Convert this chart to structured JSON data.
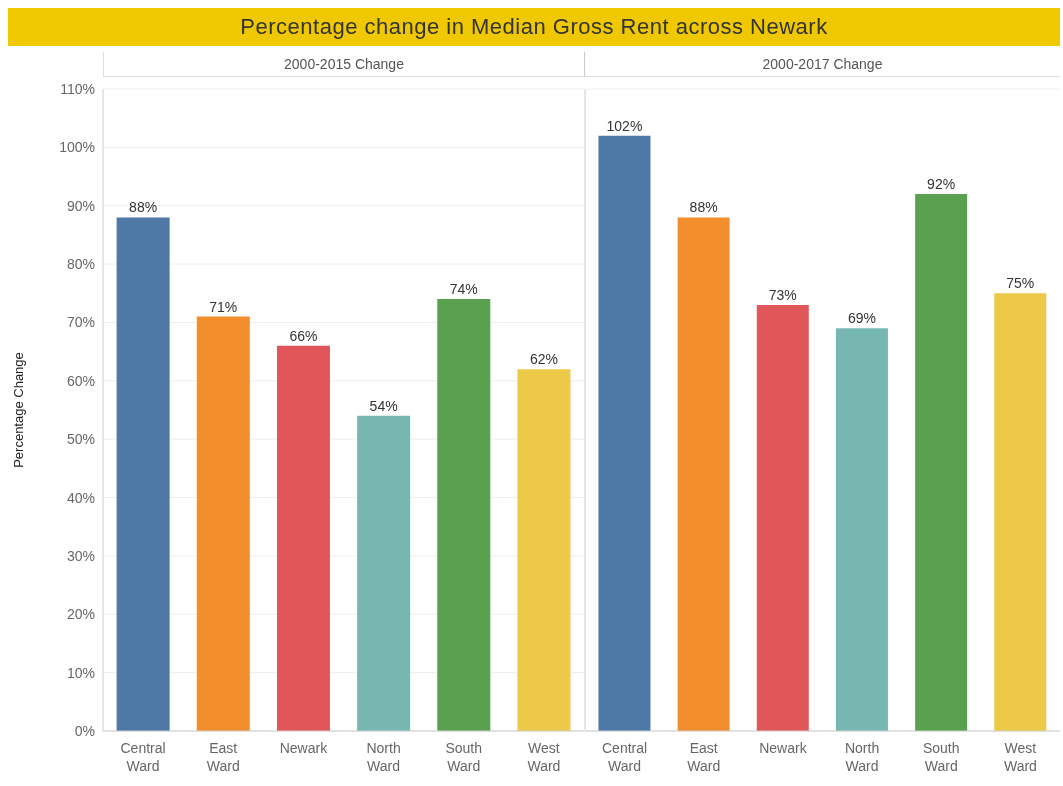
{
  "chart_data": [
    {
      "type": "bar",
      "title": "Percentage change in Median Gross Rent across Newark",
      "subtitle": "2000-2015 Change",
      "ylabel": "Percentage Change",
      "categories": [
        "Central Ward",
        "East Ward",
        "Newark",
        "North Ward",
        "South Ward",
        "West Ward"
      ],
      "values": [
        88,
        71,
        66,
        54,
        74,
        62
      ],
      "value_labels": [
        "88%",
        "71%",
        "66%",
        "54%",
        "74%",
        "62%"
      ],
      "colors": [
        "#4e79a7",
        "#f28e2b",
        "#e15759",
        "#76b7b2",
        "#59a14f",
        "#edc948"
      ],
      "ylim": [
        0,
        110
      ],
      "yticks": [
        {
          "value": 0,
          "label": "0%"
        },
        {
          "value": 10,
          "label": "10%"
        },
        {
          "value": 20,
          "label": "20%"
        },
        {
          "value": 30,
          "label": "30%"
        },
        {
          "value": 40,
          "label": "40%"
        },
        {
          "value": 50,
          "label": "50%"
        },
        {
          "value": 60,
          "label": "60%"
        },
        {
          "value": 70,
          "label": "70%"
        },
        {
          "value": 80,
          "label": "80%"
        },
        {
          "value": 90,
          "label": "90%"
        },
        {
          "value": 100,
          "label": "100%"
        },
        {
          "value": 110,
          "label": "110%"
        }
      ],
      "grid": "y"
    },
    {
      "type": "bar",
      "subtitle": "2000-2017 Change",
      "categories": [
        "Central Ward",
        "East Ward",
        "Newark",
        "North Ward",
        "South Ward",
        "West Ward"
      ],
      "values": [
        102,
        88,
        73,
        69,
        92,
        75
      ],
      "value_labels": [
        "102%",
        "88%",
        "73%",
        "69%",
        "92%",
        "75%"
      ],
      "colors": [
        "#4e79a7",
        "#f28e2b",
        "#e15759",
        "#76b7b2",
        "#59a14f",
        "#edc948"
      ],
      "ylim": [
        0,
        110
      ],
      "grid": "y",
      "tick_labels": "x"
    }
  ]
}
